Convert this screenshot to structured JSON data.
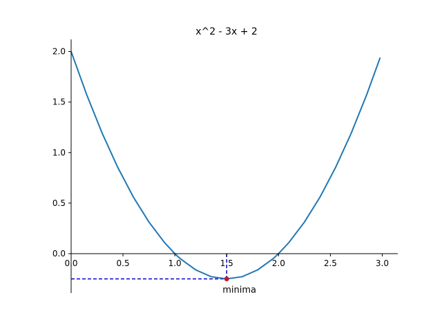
{
  "chart_data": {
    "type": "line",
    "title": "x^2 - 3x + 2",
    "xlabel": "",
    "ylabel": "",
    "xlim": [
      0,
      3.15
    ],
    "ylim": [
      -0.39,
      2.12
    ],
    "grid": false,
    "x_ticks": [
      0.0,
      0.5,
      1.0,
      1.5,
      2.0,
      2.5,
      3.0
    ],
    "x_tick_labels": [
      "0.0",
      "0.5",
      "1.0",
      "1.5",
      "2.0",
      "2.5",
      "3.0"
    ],
    "y_ticks": [
      0.0,
      0.5,
      1.0,
      1.5,
      2.0
    ],
    "y_tick_labels": [
      "0.0",
      "0.5",
      "1.0",
      "1.5",
      "2.0"
    ],
    "series": [
      {
        "color": "#1f77b4",
        "x": [
          0.0,
          0.15,
          0.3,
          0.45,
          0.6,
          0.75,
          0.9,
          1.0,
          1.05,
          1.2,
          1.35,
          1.5,
          1.65,
          1.8,
          1.95,
          2.0,
          2.1,
          2.25,
          2.4,
          2.55,
          2.7,
          2.85,
          2.98
        ],
        "y": [
          2.0,
          1.573,
          1.19,
          0.853,
          0.56,
          0.313,
          0.11,
          0.0,
          -0.048,
          -0.16,
          -0.228,
          -0.25,
          -0.228,
          -0.16,
          -0.048,
          0.0,
          0.11,
          0.313,
          0.56,
          0.853,
          1.19,
          1.573,
          1.94
        ]
      }
    ],
    "annotations": [
      {
        "text": "minima",
        "x": 1.5,
        "y": -0.25,
        "marker_color": "#c0182a",
        "guide_color": "#0000cc"
      }
    ]
  }
}
